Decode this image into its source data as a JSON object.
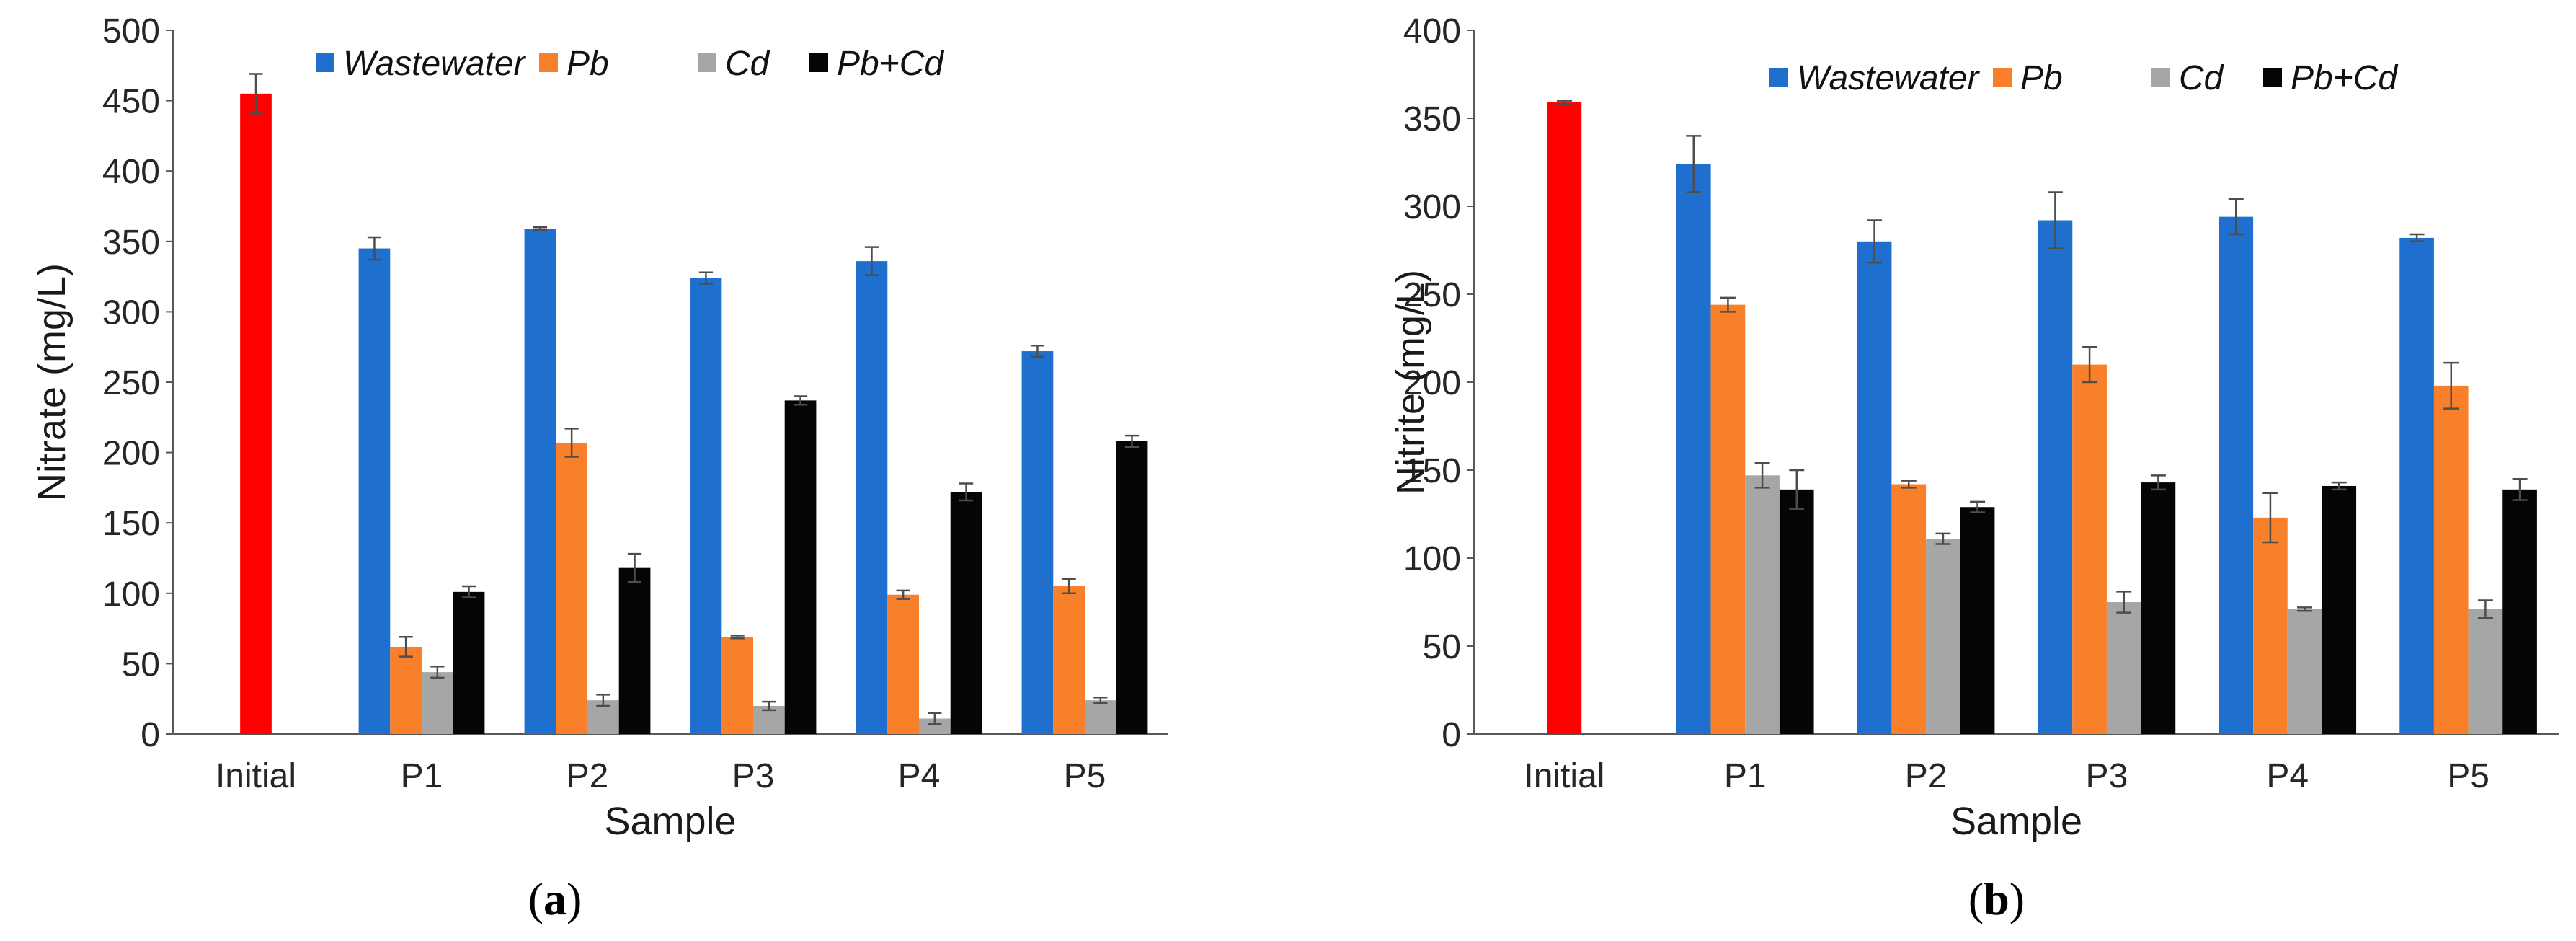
{
  "chart_data": [
    {
      "type": "bar",
      "panel_label": "a",
      "xlabel": "Sample",
      "ylabel": "Nitrate (mg/L)",
      "ylim": [
        0,
        500
      ],
      "ytick_step": 50,
      "yticks": [
        "0",
        "50",
        "100",
        "150",
        "200",
        "250",
        "300",
        "350",
        "400",
        "450",
        "500"
      ],
      "categories": [
        "Initial",
        "P1",
        "P2",
        "P3",
        "P4",
        "P5"
      ],
      "initial": {
        "name": "Initial",
        "value": 455,
        "error": 14,
        "color": "#ff0000"
      },
      "series": [
        {
          "name": "Wastewater",
          "color": "#1f6fce",
          "values": [
            null,
            345,
            359,
            324,
            336,
            272
          ],
          "errors": [
            null,
            8,
            1,
            4,
            10,
            4
          ]
        },
        {
          "name": "Pb",
          "color": "#f9802a",
          "values": [
            null,
            62,
            207,
            69,
            99,
            105
          ],
          "errors": [
            null,
            7,
            10,
            1,
            3,
            5
          ]
        },
        {
          "name": "Cd",
          "color": "#a6a6a6",
          "values": [
            null,
            44,
            24,
            20,
            11,
            24
          ],
          "errors": [
            null,
            4,
            4,
            3,
            4,
            2
          ]
        },
        {
          "name": "Pb+Cd",
          "color": "#050505",
          "values": [
            null,
            101,
            118,
            237,
            172,
            208
          ],
          "errors": [
            null,
            4,
            10,
            3,
            6,
            4
          ]
        }
      ],
      "legend_position": "top"
    },
    {
      "type": "bar",
      "panel_label": "b",
      "xlabel": "Sample",
      "ylabel": "Nitrite (mg/L)",
      "ylim": [
        0,
        400
      ],
      "ytick_step": 50,
      "yticks": [
        "0",
        "50",
        "100",
        "150",
        "200",
        "250",
        "300",
        "350",
        "400"
      ],
      "categories": [
        "Initial",
        "P1",
        "P2",
        "P3",
        "P4",
        "P5"
      ],
      "initial": {
        "name": "Initial",
        "value": 359,
        "error": 1,
        "color": "#ff0000"
      },
      "series": [
        {
          "name": "Wastewater",
          "color": "#1f6fce",
          "values": [
            null,
            324,
            280,
            292,
            294,
            282
          ],
          "errors": [
            null,
            16,
            12,
            16,
            10,
            2
          ]
        },
        {
          "name": "Pb",
          "color": "#f9802a",
          "values": [
            null,
            244,
            142,
            210,
            123,
            198
          ],
          "errors": [
            null,
            4,
            2,
            10,
            14,
            13
          ]
        },
        {
          "name": "Cd",
          "color": "#a6a6a6",
          "values": [
            null,
            147,
            111,
            75,
            71,
            71
          ],
          "errors": [
            null,
            7,
            3,
            6,
            1,
            5
          ]
        },
        {
          "name": "Pb+Cd",
          "color": "#050505",
          "values": [
            null,
            139,
            129,
            143,
            141,
            139
          ],
          "errors": [
            null,
            11,
            3,
            4,
            2,
            6
          ]
        }
      ],
      "legend_position": "top"
    }
  ]
}
